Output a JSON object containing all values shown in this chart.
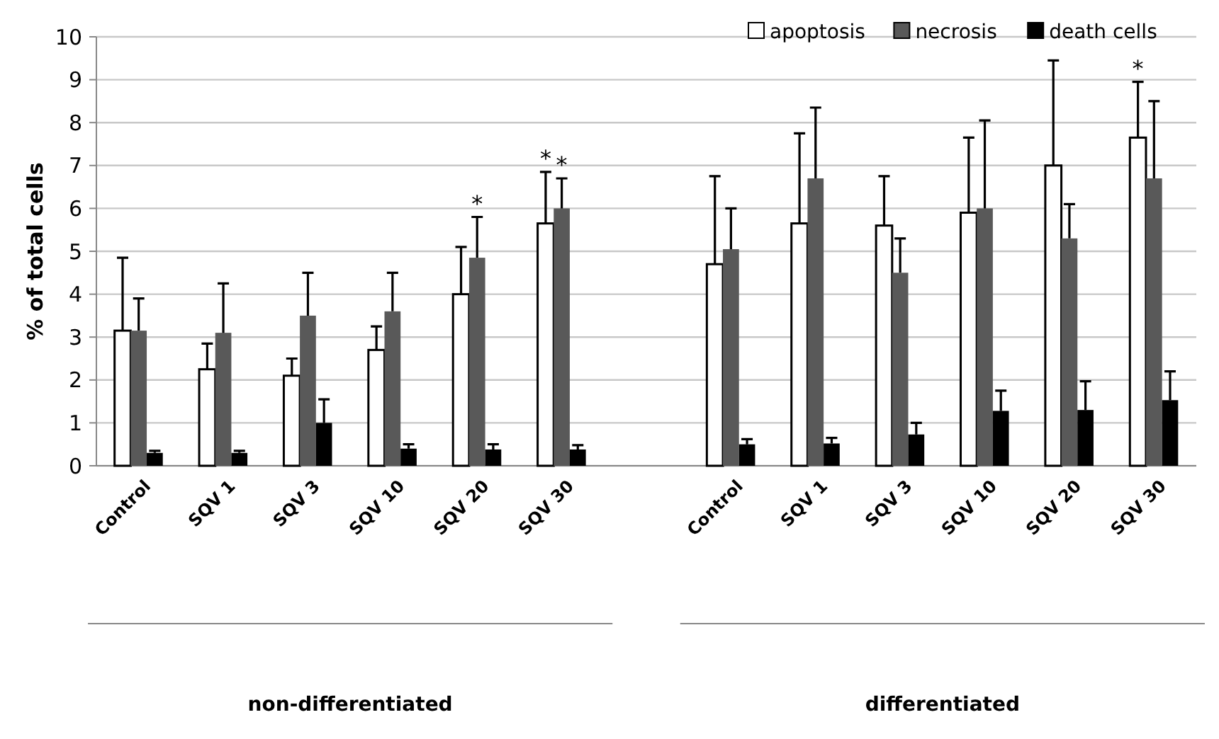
{
  "chart_data": {
    "type": "bar",
    "ylabel": "%  of total cells",
    "categories": [
      "Control",
      "SQV 1",
      "SQV 3",
      "SQV 10",
      "SQV 20",
      "SQV 30",
      null,
      "Control",
      "SQV 1",
      "SQV 3",
      "SQV 10",
      "SQV 20",
      "SQV 30"
    ],
    "series": [
      {
        "name": "apoptosis",
        "color": "#ffffff",
        "values": [
          3.15,
          2.25,
          2.1,
          2.7,
          4.0,
          5.65,
          null,
          4.7,
          5.65,
          5.6,
          5.9,
          7.0,
          7.65
        ],
        "errors": [
          [
            3.15,
            4.85
          ],
          [
            2.25,
            2.85
          ],
          [
            2.1,
            2.5
          ],
          [
            2.7,
            3.25
          ],
          [
            4.0,
            5.1
          ],
          [
            5.65,
            6.85
          ],
          null,
          [
            4.7,
            6.75
          ],
          [
            5.65,
            7.75
          ],
          [
            5.6,
            6.75
          ],
          [
            5.9,
            7.65
          ],
          [
            7.0,
            9.45
          ],
          [
            7.65,
            8.95
          ]
        ]
      },
      {
        "name": "necrosis",
        "color": "#595959",
        "values": [
          3.15,
          3.1,
          3.5,
          3.6,
          4.85,
          6.0,
          null,
          5.05,
          6.7,
          4.5,
          6.0,
          5.3,
          6.7
        ],
        "errors": [
          [
            3.15,
            3.9
          ],
          [
            3.1,
            4.25
          ],
          [
            3.5,
            4.5
          ],
          [
            3.6,
            4.5
          ],
          [
            4.85,
            5.8
          ],
          [
            6.0,
            6.7
          ],
          null,
          [
            5.05,
            6.0
          ],
          [
            6.7,
            8.35
          ],
          [
            4.5,
            5.3
          ],
          [
            6.0,
            8.05
          ],
          [
            5.3,
            6.1
          ],
          [
            6.7,
            8.5
          ]
        ]
      },
      {
        "name": "death cells",
        "color": "#000000",
        "values": [
          0.3,
          0.3,
          1.0,
          0.4,
          0.38,
          0.38,
          null,
          0.5,
          0.52,
          0.73,
          1.28,
          1.3,
          1.53
        ],
        "errors": [
          [
            0.3,
            0.35
          ],
          [
            0.3,
            0.35
          ],
          [
            1.0,
            1.55
          ],
          [
            0.4,
            0.5
          ],
          [
            0.38,
            0.5
          ],
          [
            0.38,
            0.48
          ],
          null,
          [
            0.5,
            0.62
          ],
          [
            0.52,
            0.65
          ],
          [
            0.73,
            1.0
          ],
          [
            1.28,
            1.75
          ],
          [
            1.3,
            1.97
          ],
          [
            1.53,
            2.2
          ]
        ]
      }
    ],
    "ylim": [
      0,
      10
    ],
    "yticks": [
      0,
      1,
      2,
      3,
      4,
      5,
      6,
      7,
      8,
      9,
      10
    ],
    "grid": "y",
    "legend": "top right",
    "annotations": [
      {
        "text": "*",
        "x": "SQV 20",
        "y": 4.85
      },
      {
        "text": "*",
        "x": "SQV 30",
        "y": 6.85
      },
      {
        "text": "*",
        "x": "SQV 30",
        "y": 6.7
      },
      {
        "text": "*",
        "y": 8.95
      },
      "non-differentiated",
      "differentiated"
    ]
  }
}
